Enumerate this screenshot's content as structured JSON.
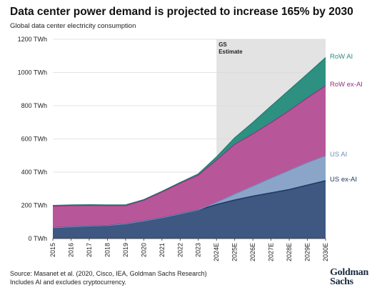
{
  "header": {
    "title": "Data center power demand is projected to increase 165% by 2030",
    "subtitle": "Global data center electricity consumption"
  },
  "footer": {
    "source": "Source: Masanet et al. (2020, Cisco, IEA, Goldman Sachs Research)",
    "note": "Includes AI and excludes cryptocurrency.",
    "logo_line1": "Goldman",
    "logo_line2": "Sachs"
  },
  "chart_data": {
    "type": "area",
    "stacked": true,
    "categories": [
      "2015",
      "2016",
      "2017",
      "2018",
      "2019",
      "2020",
      "2021",
      "2022",
      "2023",
      "2024E",
      "2025E",
      "2026E",
      "2027E",
      "2028E",
      "2029E",
      "2030E"
    ],
    "ylim": [
      0,
      1200
    ],
    "yticks": [
      0,
      200,
      400,
      600,
      800,
      1000,
      1200
    ],
    "ytick_labels": [
      "0 TWh",
      "200 TWh",
      "400 TWh",
      "600 TWh",
      "800 TWh",
      "1000 TWh",
      "1200 TWh"
    ],
    "estimate_label_line1": "GS",
    "estimate_label_line2": "Estimate",
    "estimate_start": "2024E",
    "series": [
      {
        "name": "US ex-AI",
        "color": "#3e5882",
        "line_color": "#1f3a64",
        "label_color": "#1f3a64",
        "values": [
          65,
          70,
          75,
          78,
          88,
          105,
          125,
          148,
          172,
          205,
          232,
          255,
          275,
          295,
          322,
          348
        ]
      },
      {
        "name": "US AI",
        "color": "#8aa5c8",
        "line_color": "#6f8fbd",
        "label_color": "#6f8fbd",
        "values": [
          0,
          0,
          0,
          0,
          0,
          0,
          0,
          0,
          0,
          12,
          35,
          60,
          88,
          115,
          135,
          150
        ]
      },
      {
        "name": "RoW ex-AI",
        "color": "#b8569a",
        "line_color": "#93307a",
        "label_color": "#93307a",
        "values": [
          130,
          128,
          124,
          120,
          110,
          125,
          155,
          185,
          210,
          255,
          300,
          315,
          335,
          360,
          390,
          422
        ]
      },
      {
        "name": "RoW AI",
        "color": "#2e9080",
        "line_color": "#1f7a6a",
        "label_color": "#2e8a7a",
        "values": [
          5,
          5,
          5,
          5,
          5,
          5,
          5,
          5,
          8,
          20,
          40,
          70,
          100,
          125,
          145,
          170
        ]
      }
    ]
  }
}
